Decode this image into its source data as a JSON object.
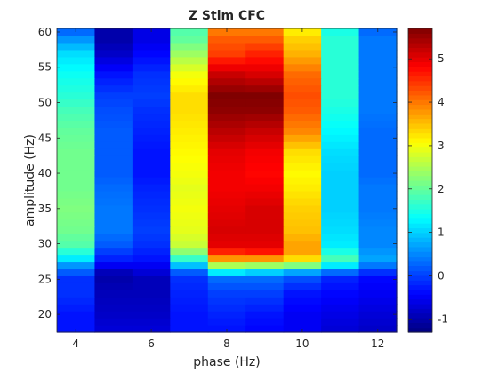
{
  "chart_data": {
    "type": "heatmap",
    "title": "Z Stim CFC",
    "xlabel": "phase (Hz)",
    "ylabel": "amplitude (Hz)",
    "x": [
      3.5,
      4.5,
      5.5,
      6.5,
      7.5,
      8.5,
      9.5,
      10.5,
      11.5,
      12.5
    ],
    "x_edges": [
      3.5,
      4.5,
      5.5,
      6.5,
      7.5,
      8.5,
      9.5,
      10.5,
      11.5,
      12.5,
      13.5
    ],
    "xlim": [
      3.5,
      12.5
    ],
    "xticks": [
      "4",
      "6",
      "8",
      "10",
      "12"
    ],
    "xtick_values": [
      4,
      6,
      8,
      10,
      12
    ],
    "ylim": [
      17.5,
      60.5
    ],
    "yticks": [
      "20",
      "25",
      "30",
      "35",
      "40",
      "45",
      "50",
      "55",
      "60"
    ],
    "ytick_values": [
      20,
      25,
      30,
      35,
      40,
      45,
      50,
      55,
      60
    ],
    "y_rows": [
      18,
      19,
      20,
      21,
      22,
      23,
      24,
      25,
      26,
      27,
      28,
      29,
      30,
      31,
      32,
      33,
      34,
      35,
      36,
      37,
      38,
      39,
      40,
      41,
      42,
      43,
      44,
      45,
      46,
      47,
      48,
      49,
      50,
      51,
      52,
      53,
      54,
      55,
      56,
      57,
      58,
      59,
      60
    ],
    "colormap": "jet",
    "colorbar": {
      "clim": [
        -1.3,
        5.7
      ],
      "ticks": [
        "-1",
        "0",
        "1",
        "2",
        "3",
        "4",
        "5"
      ],
      "tick_values": [
        -1,
        0,
        1,
        2,
        3,
        4,
        5
      ]
    },
    "anchors": [
      {
        "y": 18,
        "values": [
          -0.3,
          -0.7,
          -0.7,
          -0.3,
          -0.3,
          -0.4,
          -0.5,
          -0.7,
          -0.8,
          -1.0
        ]
      },
      {
        "y": 20,
        "values": [
          -0.3,
          -0.8,
          -0.8,
          -0.3,
          -0.2,
          -0.3,
          -0.5,
          -0.6,
          -0.7,
          -1.0
        ]
      },
      {
        "y": 23,
        "values": [
          -0.1,
          -0.9,
          -0.9,
          -0.2,
          0.0,
          0.0,
          -0.3,
          -0.4,
          -0.5,
          -0.8
        ]
      },
      {
        "y": 25,
        "values": [
          -0.1,
          -1.0,
          -0.9,
          -0.1,
          0.3,
          0.3,
          0.1,
          -0.2,
          -0.4,
          -0.6
        ]
      },
      {
        "y": 26,
        "values": [
          0.2,
          -0.9,
          -0.7,
          0.2,
          1.2,
          1.0,
          0.7,
          0.3,
          -0.1,
          -0.3
        ]
      },
      {
        "y": 27,
        "values": [
          0.6,
          -0.5,
          -0.5,
          0.9,
          2.5,
          2.4,
          2.2,
          1.2,
          0.4,
          0.1
        ]
      },
      {
        "y": 28,
        "values": [
          1.2,
          -0.2,
          -0.3,
          1.7,
          3.8,
          3.8,
          3.3,
          1.8,
          0.7,
          0.4
        ]
      },
      {
        "y": 29,
        "values": [
          1.6,
          0.0,
          -0.2,
          2.3,
          4.6,
          4.7,
          3.7,
          1.5,
          0.6,
          0.3
        ]
      },
      {
        "y": 30,
        "values": [
          1.9,
          0.2,
          -0.1,
          2.7,
          5.0,
          5.0,
          3.7,
          1.2,
          0.5,
          0.2
        ]
      },
      {
        "y": 32,
        "values": [
          2.1,
          0.4,
          0.0,
          2.9,
          5.1,
          5.1,
          3.5,
          1.1,
          0.5,
          0.2
        ]
      },
      {
        "y": 35,
        "values": [
          2.2,
          0.4,
          -0.1,
          3.0,
          5.0,
          5.1,
          3.4,
          1.0,
          0.4,
          0.2
        ]
      },
      {
        "y": 38,
        "values": [
          2.1,
          0.3,
          -0.2,
          2.9,
          4.9,
          4.9,
          3.2,
          1.0,
          0.4,
          0.1
        ]
      },
      {
        "y": 40,
        "values": [
          2.1,
          0.2,
          -0.3,
          3.0,
          4.9,
          4.8,
          3.1,
          1.0,
          0.3,
          0.1
        ]
      },
      {
        "y": 43,
        "values": [
          2.1,
          0.2,
          -0.3,
          3.1,
          5.0,
          4.9,
          3.3,
          1.1,
          0.3,
          0.1
        ]
      },
      {
        "y": 46,
        "values": [
          2.0,
          0.2,
          -0.2,
          3.2,
          5.3,
          5.2,
          3.9,
          1.3,
          0.3,
          0.2
        ]
      },
      {
        "y": 49,
        "values": [
          1.8,
          0.1,
          -0.1,
          3.3,
          5.6,
          5.6,
          4.2,
          1.5,
          0.4,
          0.2
        ]
      },
      {
        "y": 51,
        "values": [
          1.6,
          0.0,
          0.0,
          3.3,
          5.7,
          5.7,
          4.3,
          1.6,
          0.4,
          0.2
        ]
      },
      {
        "y": 54,
        "values": [
          1.4,
          -0.3,
          -0.1,
          3.0,
          5.2,
          5.1,
          4.1,
          1.6,
          0.4,
          0.2
        ]
      },
      {
        "y": 57,
        "values": [
          1.1,
          -0.8,
          -0.4,
          2.4,
          4.4,
          4.6,
          3.6,
          1.6,
          0.4,
          0.2
        ]
      },
      {
        "y": 59,
        "values": [
          0.6,
          -1.0,
          -0.6,
          2.0,
          4.2,
          4.2,
          3.4,
          1.6,
          0.4,
          0.1
        ]
      },
      {
        "y": 60,
        "values": [
          0.3,
          -1.0,
          -0.6,
          1.9,
          4.0,
          4.0,
          3.2,
          1.5,
          0.3,
          0.0
        ]
      }
    ]
  }
}
